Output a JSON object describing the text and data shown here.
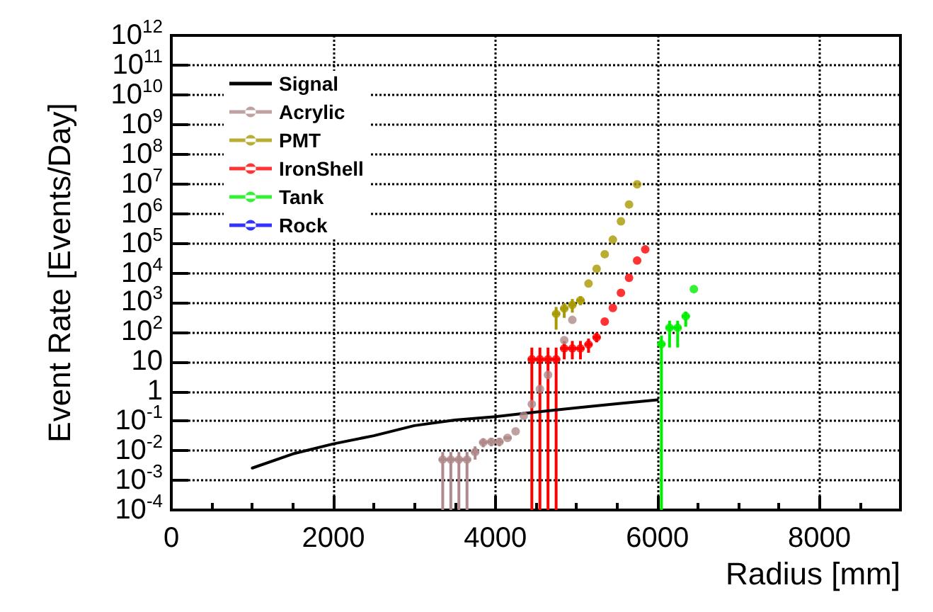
{
  "chart_data": {
    "type": "scatter",
    "xlabel": "Radius [mm]",
    "ylabel": "Event Rate [Events/Day]",
    "log": "y",
    "grid": true,
    "legend": "top left",
    "marker": "circle",
    "line_style": "solid",
    "xlim": [
      0,
      9000
    ],
    "xticks": [
      0,
      2000,
      4000,
      6000,
      8000
    ],
    "ylim": [
      0.0001,
      1000000000000
    ],
    "yticks": [
      {
        "value": 0.0001,
        "label": "10$^{-4}$"
      },
      {
        "value": 0.001,
        "label": "10$^{-3}$"
      },
      {
        "value": 0.01,
        "label": "10$^{-2}$"
      },
      {
        "value": 0.1,
        "label": "10$^{-1}$"
      },
      {
        "value": 1,
        "label": "1"
      },
      {
        "value": 10,
        "label": "10"
      },
      {
        "value": 100,
        "label": "10$^{2}$"
      },
      {
        "value": 1000,
        "label": "10$^{3}$"
      },
      {
        "value": 10000,
        "label": "10$^{4}$"
      },
      {
        "value": 100000,
        "label": "10$^{5}$"
      },
      {
        "value": 1000000,
        "label": "10$^{6}$"
      },
      {
        "value": 10000000,
        "label": "10$^{7}$"
      },
      {
        "value": 100000000,
        "label": "10$^{8}$"
      },
      {
        "value": 1000000000,
        "label": "10$^{9}$"
      },
      {
        "value": 10000000000,
        "label": "10$^{10}$"
      },
      {
        "value": 100000000000,
        "label": "10$^{11}$"
      },
      {
        "value": 1000000000000,
        "label": "10$^{12}$"
      }
    ],
    "series": [
      {
        "name": "Signal",
        "type": "line",
        "marker": "none",
        "color": "#000000",
        "x": [
          1000,
          1500,
          2000,
          2500,
          3000,
          3500,
          4000,
          4500,
          5000,
          5500,
          6000
        ],
        "values": [
          0.0026,
          0.0078,
          0.017,
          0.032,
          0.07,
          0.108,
          0.14,
          0.2,
          0.28,
          0.38,
          0.52
        ]
      },
      {
        "name": "Acrylic",
        "color": "#b08a8a",
        "x": [
          3350,
          3450,
          3550,
          3650,
          3750,
          3850,
          3950,
          4050,
          4150,
          4250,
          4350,
          4450,
          4550,
          4650,
          4850,
          4950
        ],
        "values": [
          0.005,
          0.005,
          0.005,
          0.005,
          0.009,
          0.019,
          0.02,
          0.02,
          0.027,
          0.045,
          0.15,
          0.37,
          1.2,
          3.6,
          53,
          257
        ],
        "errors": [
          [
            0.0001,
            0.009
          ],
          [
            0.0001,
            0.009
          ],
          [
            0.0001,
            0.009
          ],
          [
            0.0001,
            0.009
          ],
          [
            0.005,
            0.014
          ],
          [
            0.013,
            0.026
          ],
          [
            0.014,
            0.027
          ],
          [
            0.014,
            0.027
          ],
          null,
          null,
          null,
          null,
          null,
          null,
          null,
          null
        ],
        "xerrors": [
          50,
          50,
          50,
          50,
          50,
          50,
          50,
          50,
          50,
          null,
          null,
          null,
          null,
          null,
          null,
          null
        ]
      },
      {
        "name": "PMT",
        "color": "#a89a00",
        "x": [
          4750,
          4850,
          4950,
          5050,
          5150,
          5250,
          5350,
          5450,
          5550,
          5650,
          5750
        ],
        "values": [
          410,
          620,
          820,
          1170,
          4300,
          13500,
          42000,
          130000,
          540000,
          2000000,
          9500000
        ],
        "errors": [
          [
            120,
            700
          ],
          [
            300,
            950
          ],
          [
            450,
            1300
          ],
          [
            800,
            1600
          ],
          null,
          null,
          null,
          null,
          null,
          null,
          null
        ],
        "xerrors": [
          50,
          50,
          50,
          50,
          null,
          null,
          null,
          null,
          null,
          null,
          null
        ]
      },
      {
        "name": "IronShell",
        "color": "#ff0000",
        "x": [
          4450,
          4550,
          4650,
          4750,
          4850,
          4950,
          5050,
          5150,
          5250,
          5350,
          5450,
          5550,
          5650,
          5750,
          5850
        ],
        "values": [
          12,
          12,
          12,
          12,
          28,
          28,
          28,
          38,
          66,
          225,
          650,
          2100,
          6700,
          25700,
          61000
        ],
        "errors": [
          [
            0.0001,
            30
          ],
          [
            0.0001,
            30
          ],
          [
            0.0001,
            30
          ],
          [
            0.0001,
            30
          ],
          [
            12,
            50
          ],
          [
            12,
            50
          ],
          [
            12,
            50
          ],
          [
            20,
            60
          ],
          [
            45,
            95
          ],
          null,
          null,
          null,
          null,
          null,
          null
        ],
        "xerrors": [
          50,
          50,
          50,
          50,
          50,
          50,
          50,
          50,
          50,
          null,
          null,
          null,
          null,
          null,
          null
        ]
      },
      {
        "name": "Tank",
        "color": "#00ee00",
        "x": [
          6050,
          6150,
          6250,
          6350,
          6450
        ],
        "values": [
          39,
          140,
          140,
          340,
          2800
        ],
        "errors": [
          [
            0.0001,
            76
          ],
          [
            30,
            240
          ],
          [
            30,
            240
          ],
          [
            150,
            490
          ],
          null
        ],
        "xerrors": [
          50,
          50,
          50,
          50,
          null
        ]
      },
      {
        "name": "Rock",
        "color": "#0000ff"
      }
    ]
  }
}
